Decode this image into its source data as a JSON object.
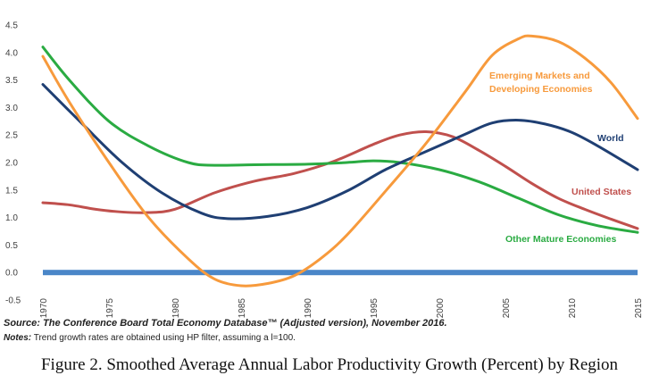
{
  "chart_data": {
    "type": "line",
    "title": "",
    "xlabel": "",
    "ylabel": "",
    "xlim": [
      1970,
      2015
    ],
    "ylim": [
      -0.5,
      4.5
    ],
    "y_ticks": [
      "-0.5",
      "0.0",
      "0.5",
      "1.0",
      "1.5",
      "2.0",
      "2.5",
      "3.0",
      "3.5",
      "4.0",
      "4.5"
    ],
    "x_ticks": [
      "1970",
      "1975",
      "1980",
      "1985",
      "1990",
      "1995",
      "2000",
      "2005",
      "2010",
      "2015"
    ],
    "grid": false,
    "series": [
      {
        "name": "World",
        "label": "World",
        "color": "#1f3f73",
        "x": [
          1970,
          1973,
          1976,
          1979,
          1982,
          1984,
          1987,
          1990,
          1993,
          1996,
          1999,
          2002,
          2004,
          2006,
          2008,
          2010,
          2012,
          2015
        ],
        "y": [
          3.42,
          2.7,
          2.0,
          1.45,
          1.08,
          0.98,
          1.02,
          1.18,
          1.48,
          1.88,
          2.2,
          2.52,
          2.72,
          2.77,
          2.7,
          2.55,
          2.3,
          1.87
        ]
      },
      {
        "name": "United States",
        "label": "United States",
        "color": "#c0504d",
        "x": [
          1970,
          1972,
          1974,
          1976,
          1978,
          1980,
          1983,
          1986,
          1989,
          1992,
          1995,
          1997,
          1999,
          2001,
          2003,
          2005,
          2007,
          2009,
          2011,
          2013,
          2015
        ],
        "y": [
          1.27,
          1.23,
          1.15,
          1.1,
          1.09,
          1.15,
          1.45,
          1.66,
          1.8,
          2.02,
          2.33,
          2.5,
          2.56,
          2.47,
          2.22,
          1.93,
          1.62,
          1.35,
          1.15,
          0.97,
          0.8
        ]
      },
      {
        "name": "Other Mature Economies",
        "label": "Other Mature Economies",
        "color": "#2aab42",
        "x": [
          1970,
          1972,
          1975,
          1978,
          1981,
          1983,
          1986,
          1990,
          1993,
          1995,
          1997,
          2000,
          2003,
          2006,
          2009,
          2012,
          2015
        ],
        "y": [
          4.1,
          3.5,
          2.75,
          2.3,
          2.0,
          1.95,
          1.96,
          1.97,
          2.0,
          2.03,
          2.0,
          1.87,
          1.65,
          1.35,
          1.05,
          0.85,
          0.73
        ]
      },
      {
        "name": "Emerging Markets and Developing Economies",
        "label_lines": [
          "Emerging Markets and",
          "Developing Economies"
        ],
        "color": "#f79a3c",
        "x": [
          1970,
          1972,
          1975,
          1978,
          1981,
          1983,
          1985,
          1987,
          1989,
          1991,
          1993,
          1996,
          1999,
          2002,
          2004,
          2006,
          2007,
          2009,
          2011,
          2013,
          2015
        ],
        "y": [
          3.93,
          3.1,
          2.0,
          1.0,
          0.25,
          -0.12,
          -0.24,
          -0.2,
          -0.06,
          0.25,
          0.68,
          1.5,
          2.35,
          3.3,
          3.95,
          4.25,
          4.3,
          4.2,
          3.9,
          3.45,
          2.8
        ]
      }
    ]
  },
  "footer": {
    "source": "Source: The Conference Board Total Economy Database™ (Adjusted version), November 2016.",
    "notes_label": "Notes:",
    "notes_text": " Trend growth rates are obtained using HP filter, assuming a l=100."
  },
  "caption": "Figure 2. Smoothed Average Annual Labor Productivity Growth (Percent) by Region"
}
